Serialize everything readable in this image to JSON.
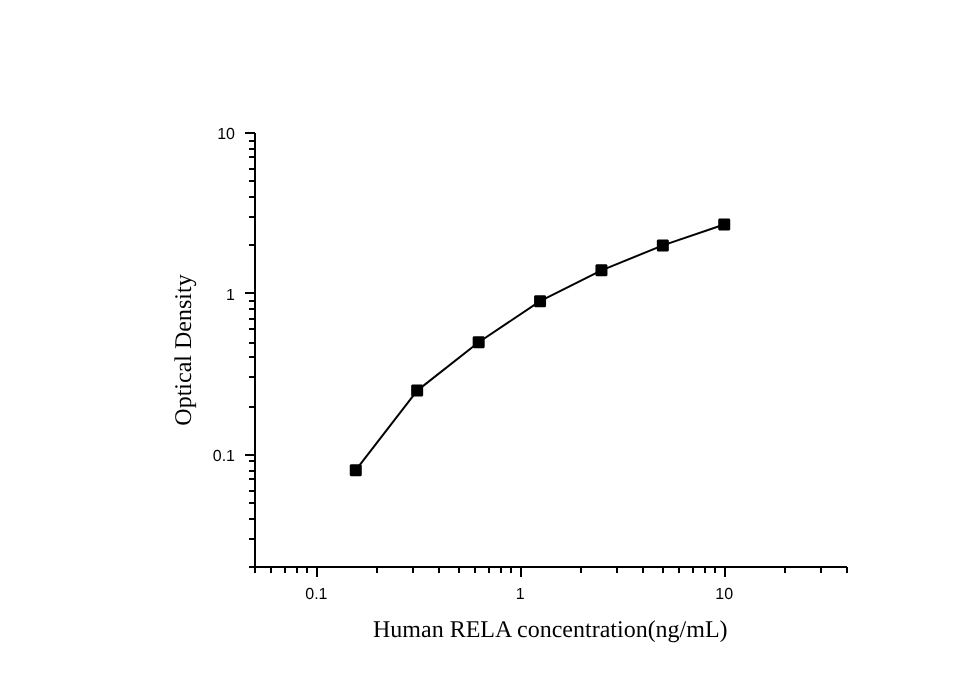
{
  "chart_data": {
    "type": "line",
    "xlabel": "Human RELA concentration(ng/mL)",
    "ylabel": "Optical Density",
    "log": "xy",
    "x": [
      0.156,
      0.312,
      0.625,
      1.25,
      2.5,
      5,
      10
    ],
    "series": [
      {
        "color": "#000000",
        "values": [
          0.08,
          0.25,
          0.5,
          0.9,
          1.4,
          2.0,
          2.7
        ]
      }
    ],
    "xlim": [
      0.05,
      40
    ],
    "ylim": [
      0.02,
      10
    ],
    "xticks": [
      0.1,
      1,
      10
    ],
    "yticks": [
      0.1,
      1,
      10
    ],
    "marker": "square",
    "line_style": "solid"
  }
}
